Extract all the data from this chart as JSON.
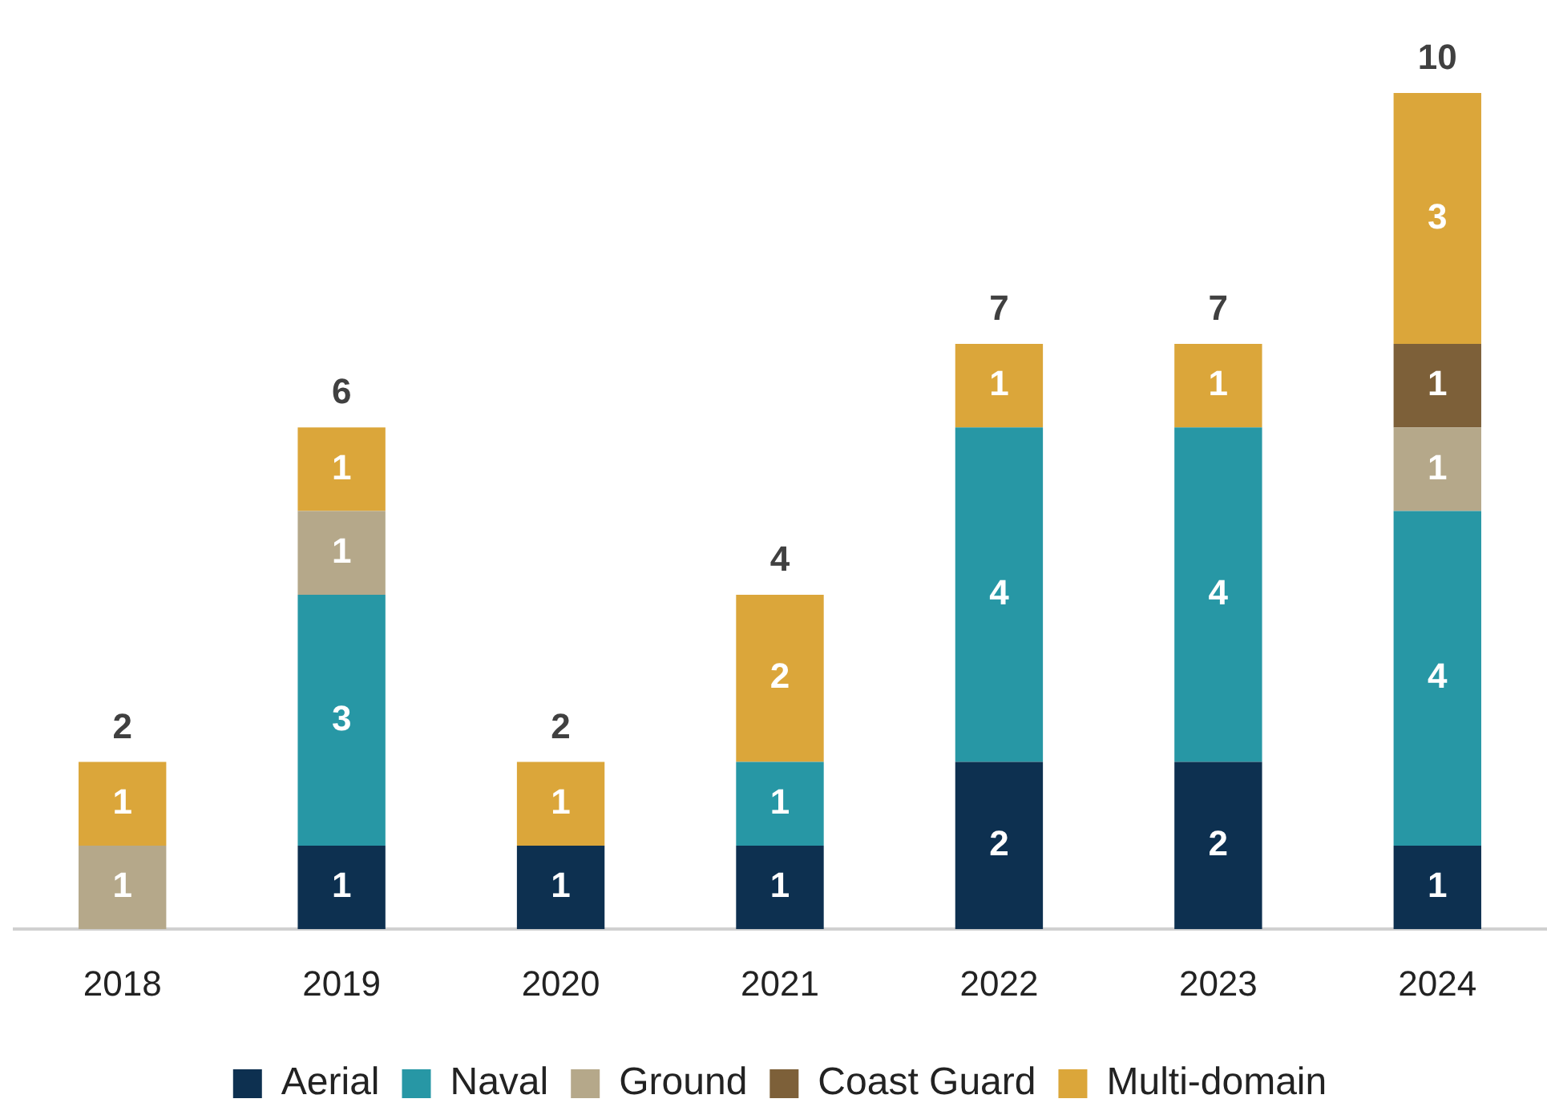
{
  "chart_data": {
    "type": "bar",
    "stacked": true,
    "data_labels": true,
    "legend": "bottom",
    "grid": false,
    "categories": [
      "2018",
      "2019",
      "2020",
      "2021",
      "2022",
      "2023",
      "2024"
    ],
    "series": [
      {
        "name": "Aerial",
        "color": "#0d3050",
        "values": [
          null,
          1,
          1,
          1,
          2,
          2,
          1
        ]
      },
      {
        "name": "Naval",
        "color": "#2797a5",
        "values": [
          null,
          3,
          null,
          1,
          4,
          4,
          4
        ]
      },
      {
        "name": "Ground",
        "color": "#b5a88a",
        "values": [
          1,
          1,
          null,
          null,
          null,
          null,
          1
        ]
      },
      {
        "name": "Coast Guard",
        "color": "#7d6039",
        "values": [
          null,
          null,
          null,
          null,
          null,
          null,
          1
        ]
      },
      {
        "name": "Multi-domain",
        "color": "#dba63a",
        "values": [
          1,
          1,
          1,
          2,
          1,
          1,
          3
        ]
      }
    ],
    "totals": [
      "2",
      "6",
      "2",
      "4",
      "7",
      "7",
      "10"
    ]
  }
}
